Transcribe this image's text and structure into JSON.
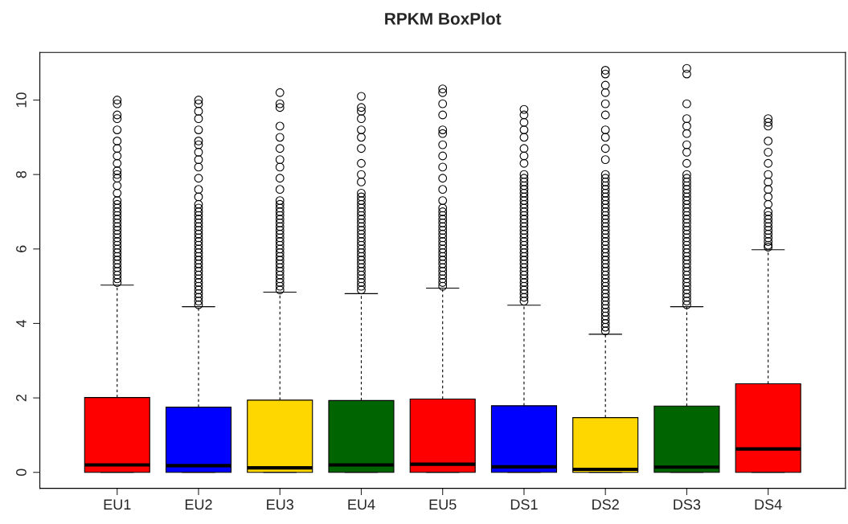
{
  "chart_data": {
    "type": "box",
    "title": "RPKM BoxPlot",
    "categories": [
      "EU1",
      "EU2",
      "EU3",
      "EU4",
      "EU5",
      "DS1",
      "DS2",
      "DS3",
      "DS4"
    ],
    "colors": [
      "#ff0000",
      "#0000ff",
      "#ffd700",
      "#006400",
      "#ff0000",
      "#0000ff",
      "#ffd700",
      "#006400",
      "#ff0000"
    ],
    "boxes": [
      {
        "low": 0,
        "q1": 0,
        "median": 0.2,
        "q3": 2.01,
        "high": 5.03,
        "outliers": [
          5.1,
          5.2,
          5.3,
          5.4,
          5.5,
          5.6,
          5.7,
          5.8,
          5.9,
          6.0,
          6.1,
          6.2,
          6.3,
          6.4,
          6.5,
          6.6,
          6.7,
          6.8,
          6.9,
          7.0,
          7.1,
          7.2,
          7.3,
          7.5,
          7.7,
          7.9,
          8.0,
          8.1,
          8.3,
          8.5,
          8.7,
          8.9,
          9.2,
          9.5,
          9.6,
          9.9,
          10.0
        ]
      },
      {
        "low": 0,
        "q1": 0,
        "median": 0.18,
        "q3": 1.75,
        "high": 4.45,
        "outliers": [
          4.5,
          4.6,
          4.7,
          4.8,
          4.9,
          5.0,
          5.1,
          5.2,
          5.3,
          5.4,
          5.5,
          5.6,
          5.7,
          5.8,
          5.9,
          6.0,
          6.1,
          6.2,
          6.3,
          6.4,
          6.5,
          6.6,
          6.7,
          6.8,
          6.9,
          7.0,
          7.1,
          7.2,
          7.4,
          7.6,
          7.9,
          8.2,
          8.4,
          8.6,
          8.8,
          8.9,
          9.2,
          9.5,
          9.7,
          9.9,
          10.0
        ]
      },
      {
        "low": 0,
        "q1": 0,
        "median": 0.12,
        "q3": 1.94,
        "high": 4.84,
        "outliers": [
          4.9,
          5.0,
          5.1,
          5.2,
          5.3,
          5.4,
          5.5,
          5.6,
          5.7,
          5.8,
          5.9,
          6.0,
          6.1,
          6.2,
          6.3,
          6.4,
          6.5,
          6.6,
          6.7,
          6.8,
          6.9,
          7.0,
          7.1,
          7.2,
          7.3,
          7.6,
          7.9,
          8.2,
          8.4,
          8.7,
          9.0,
          9.3,
          9.8,
          9.9,
          10.2
        ]
      },
      {
        "low": 0,
        "q1": 0,
        "median": 0.2,
        "q3": 1.93,
        "high": 4.8,
        "outliers": [
          4.9,
          5.0,
          5.1,
          5.2,
          5.3,
          5.4,
          5.5,
          5.6,
          5.7,
          5.8,
          5.9,
          6.0,
          6.1,
          6.2,
          6.3,
          6.4,
          6.5,
          6.6,
          6.7,
          6.8,
          6.9,
          7.0,
          7.1,
          7.2,
          7.3,
          7.4,
          7.5,
          7.8,
          8.0,
          8.3,
          8.7,
          9.0,
          9.2,
          9.5,
          9.7,
          9.8,
          10.1
        ]
      },
      {
        "low": 0,
        "q1": 0,
        "median": 0.22,
        "q3": 1.97,
        "high": 4.95,
        "outliers": [
          5.0,
          5.1,
          5.2,
          5.3,
          5.4,
          5.5,
          5.6,
          5.7,
          5.8,
          5.9,
          6.0,
          6.1,
          6.2,
          6.3,
          6.4,
          6.5,
          6.6,
          6.7,
          6.8,
          6.9,
          7.0,
          7.1,
          7.3,
          7.6,
          7.9,
          8.2,
          8.5,
          8.8,
          9.1,
          9.2,
          9.6,
          9.9,
          10.2,
          10.3
        ]
      },
      {
        "low": 0,
        "q1": 0,
        "median": 0.15,
        "q3": 1.79,
        "high": 4.49,
        "outliers": [
          4.6,
          4.7,
          4.8,
          4.9,
          5.0,
          5.1,
          5.2,
          5.3,
          5.4,
          5.5,
          5.6,
          5.7,
          5.8,
          5.9,
          6.0,
          6.1,
          6.2,
          6.3,
          6.4,
          6.5,
          6.6,
          6.7,
          6.8,
          6.9,
          7.0,
          7.1,
          7.2,
          7.3,
          7.4,
          7.5,
          7.6,
          7.7,
          7.8,
          7.9,
          8.0,
          8.3,
          8.5,
          8.7,
          9.0,
          9.2,
          9.4,
          9.6,
          9.75
        ]
      },
      {
        "low": 0,
        "q1": 0,
        "median": 0.08,
        "q3": 1.47,
        "high": 3.71,
        "outliers": [
          3.8,
          3.9,
          4.0,
          4.1,
          4.2,
          4.3,
          4.4,
          4.5,
          4.6,
          4.7,
          4.8,
          4.9,
          5.0,
          5.1,
          5.2,
          5.3,
          5.4,
          5.5,
          5.6,
          5.7,
          5.8,
          5.9,
          6.0,
          6.1,
          6.2,
          6.3,
          6.4,
          6.5,
          6.6,
          6.7,
          6.8,
          6.9,
          7.0,
          7.1,
          7.2,
          7.3,
          7.4,
          7.5,
          7.6,
          7.7,
          7.8,
          7.9,
          8.0,
          8.4,
          8.7,
          9.0,
          9.2,
          9.6,
          9.9,
          10.2,
          10.4,
          10.7,
          10.8
        ]
      },
      {
        "low": 0,
        "q1": 0,
        "median": 0.14,
        "q3": 1.78,
        "high": 4.45,
        "outliers": [
          4.5,
          4.6,
          4.7,
          4.8,
          4.9,
          5.0,
          5.1,
          5.2,
          5.3,
          5.4,
          5.5,
          5.6,
          5.7,
          5.8,
          5.9,
          6.0,
          6.1,
          6.2,
          6.3,
          6.4,
          6.5,
          6.6,
          6.7,
          6.8,
          6.9,
          7.0,
          7.1,
          7.2,
          7.3,
          7.4,
          7.5,
          7.6,
          7.7,
          7.8,
          7.9,
          8.0,
          8.3,
          8.6,
          8.8,
          9.1,
          9.3,
          9.5,
          9.9,
          10.7,
          10.85
        ]
      },
      {
        "low": 0,
        "q1": 0,
        "median": 0.63,
        "q3": 2.38,
        "high": 5.98,
        "outliers": [
          6.05,
          6.1,
          6.2,
          6.3,
          6.4,
          6.5,
          6.6,
          6.7,
          6.8,
          6.9,
          7.0,
          7.2,
          7.4,
          7.6,
          7.8,
          8.0,
          8.3,
          8.6,
          8.9,
          9.3,
          9.4,
          9.5
        ]
      }
    ],
    "ylim": [
      -0.43,
      11.28
    ],
    "yticks": [
      0,
      2,
      4,
      6,
      8,
      10
    ],
    "grid": false,
    "legend": false
  }
}
